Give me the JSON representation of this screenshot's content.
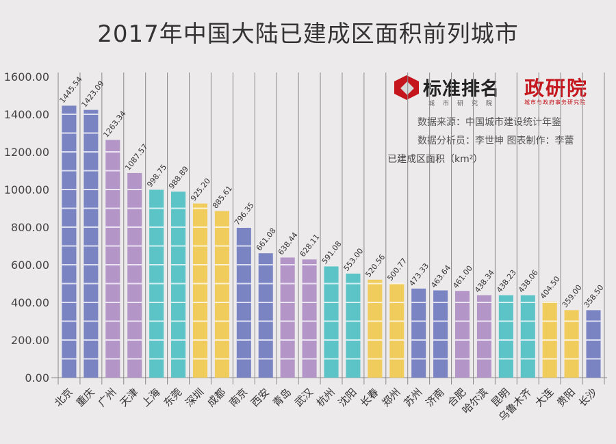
{
  "title": "2017年中国大陆已建成区面积前列城市",
  "logos": {
    "brand1_icon": "hexagon-cube-logo-icon",
    "brand1_name": "标准排名",
    "brand1_sub": "城市研究院",
    "brand2_name": "政研院",
    "brand2_sub": "城市与政府事务研究院",
    "brand_color": "#c4161c"
  },
  "source_text": "数据来源：中国城市建设统计年鉴",
  "analyst_text": "数据分析员：李世坤 图表制作：李蕾",
  "unit_label": "已建成区面积（km²）",
  "chart_data": {
    "type": "bar",
    "title": "2017年中国大陆已建成区面积前列城市",
    "xlabel": "",
    "ylabel": "已建成区面积（km²）",
    "ylim": [
      0,
      1600
    ],
    "yticks": [
      0,
      200,
      400,
      600,
      800,
      1000,
      1200,
      1400,
      1600
    ],
    "ytick_labels": [
      "0.00",
      "200.00",
      "400.00",
      "600.00",
      "800.00",
      "1000.00",
      "1200.00",
      "1400.00",
      "1600.00"
    ],
    "grid": "vertical lines between categories",
    "legend": "none",
    "categories": [
      "北京",
      "重庆",
      "广州",
      "天津",
      "上海",
      "东莞",
      "深圳",
      "成都",
      "南京",
      "西安",
      "青岛",
      "武汉",
      "杭州",
      "沈阳",
      "长春",
      "郑州",
      "苏州",
      "济南",
      "合肥",
      "哈尔滨",
      "昆明",
      "乌鲁木齐",
      "大连",
      "贵阳",
      "长沙"
    ],
    "values": [
      1445.54,
      1423.09,
      1263.34,
      1087.57,
      998.75,
      988.89,
      925.2,
      885.61,
      796.35,
      661.08,
      638.44,
      628.11,
      591.08,
      553.0,
      520.56,
      500.77,
      473.33,
      463.64,
      461.0,
      438.34,
      438.23,
      438.06,
      404.5,
      359.0,
      358.5
    ],
    "value_labels": [
      "1445.54",
      "1423.09",
      "1263.34",
      "1087.57",
      "998.75",
      "988.89",
      "925.20",
      "885.61",
      "796.35",
      "661.08",
      "638.44",
      "628.11",
      "591.08",
      "553.00",
      "520.56",
      "500.77",
      "473.33",
      "463.64",
      "461.00",
      "438.34",
      "438.23",
      "438.06",
      "404.50",
      "359.00",
      "358.50"
    ],
    "color_groups": [
      "blue",
      "blue",
      "purple",
      "purple",
      "teal",
      "teal",
      "yellow",
      "yellow",
      "blue",
      "blue",
      "purple",
      "purple",
      "teal",
      "teal",
      "yellow",
      "yellow",
      "blue",
      "blue",
      "purple",
      "purple",
      "teal",
      "teal",
      "yellow",
      "yellow",
      "blue"
    ],
    "palette": {
      "blue": "#7a84c2",
      "purple": "#b495c8",
      "teal": "#5cc3c6",
      "yellow": "#f0cc5c"
    }
  }
}
